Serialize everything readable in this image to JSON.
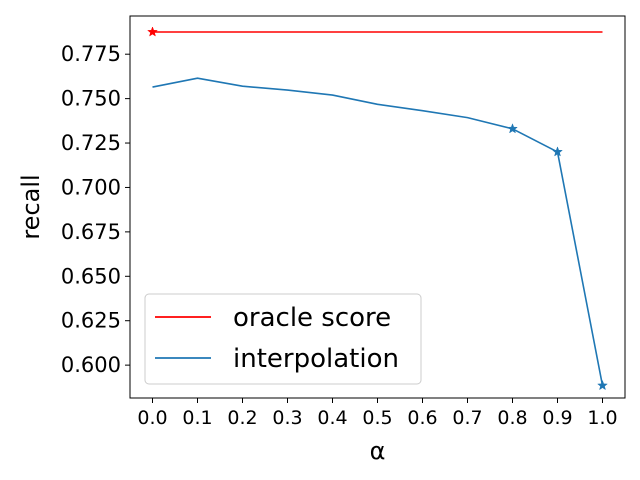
{
  "chart_data": {
    "type": "line",
    "xlabel": "α",
    "ylabel": "recall",
    "xlim": [
      -0.05,
      1.05
    ],
    "ylim": [
      0.5815,
      0.7965
    ],
    "x_ticks": [
      0.0,
      0.1,
      0.2,
      0.3,
      0.4,
      0.5,
      0.6,
      0.7,
      0.8,
      0.9,
      1.0
    ],
    "x_tick_labels": [
      "0.0",
      "0.1",
      "0.2",
      "0.3",
      "0.4",
      "0.5",
      "0.6",
      "0.7",
      "0.8",
      "0.9",
      "1.0"
    ],
    "y_ticks": [
      0.6,
      0.625,
      0.65,
      0.675,
      0.7,
      0.725,
      0.75,
      0.775
    ],
    "y_tick_labels": [
      "0.600",
      "0.625",
      "0.650",
      "0.675",
      "0.700",
      "0.725",
      "0.750",
      "0.775"
    ],
    "grid": false,
    "legend_position": "lower-left",
    "series": [
      {
        "name": "oracle score",
        "color": "#ff0000",
        "x": [
          0.0,
          1.0
        ],
        "y": [
          0.7875,
          0.7875
        ],
        "markers": [
          {
            "x": 0.0,
            "y": 0.7875,
            "shape": "star"
          }
        ]
      },
      {
        "name": "interpolation",
        "color": "#1f77b4",
        "x": [
          0.0,
          0.1,
          0.2,
          0.3,
          0.4,
          0.5,
          0.6,
          0.7,
          0.8,
          0.9,
          1.0
        ],
        "y": [
          0.7565,
          0.7615,
          0.757,
          0.7548,
          0.752,
          0.7468,
          0.7432,
          0.7393,
          0.733,
          0.72,
          0.5885
        ],
        "markers": [
          {
            "x": 0.8,
            "y": 0.733,
            "shape": "star"
          },
          {
            "x": 0.9,
            "y": 0.72,
            "shape": "star"
          },
          {
            "x": 1.0,
            "y": 0.5885,
            "shape": "star"
          }
        ]
      }
    ]
  }
}
